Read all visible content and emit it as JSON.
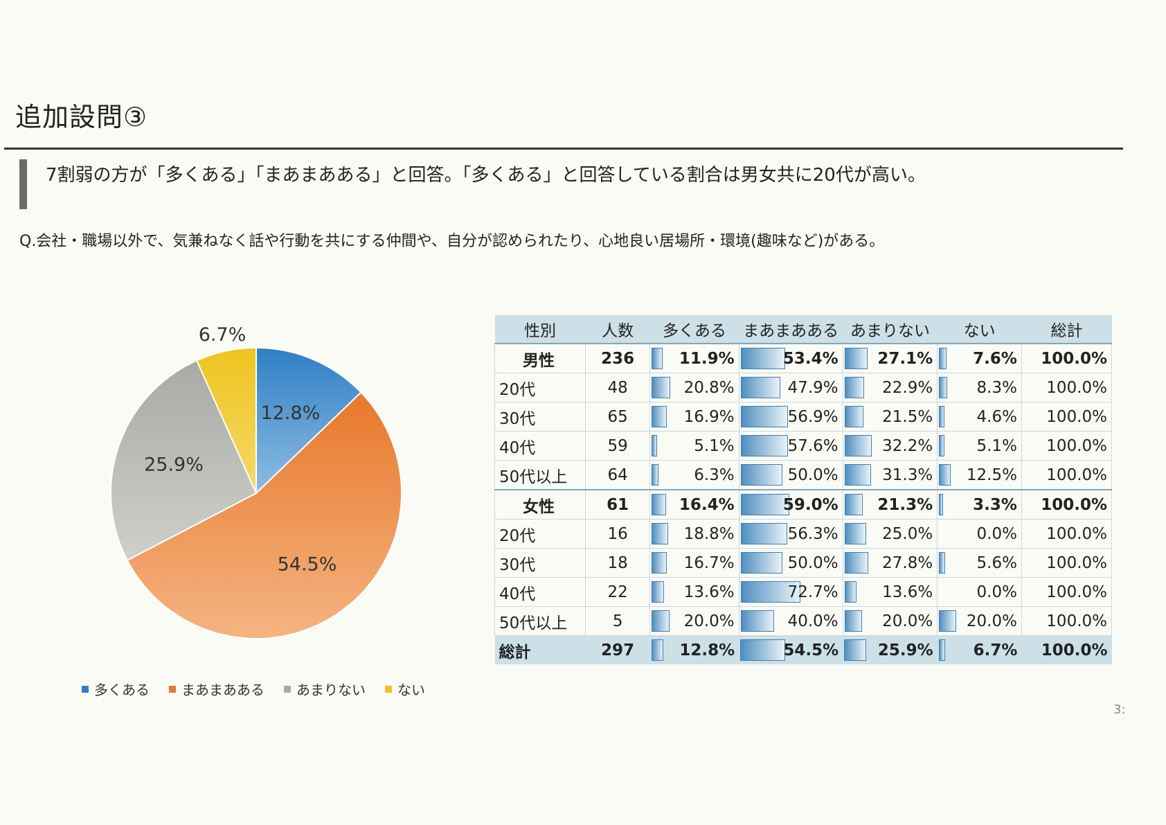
{
  "page": {
    "title": "追加設問③",
    "summary": "7割弱の方が「多くある」「まあまあある」と回答。「多くある」と回答している割合は男女共に20代が高い。",
    "question": "Q.会社・職場以外で、気兼ねなく話や行動を共にする仲間や、自分が認められたり、心地良い居場所・環境(趣味など)がある。",
    "page_number": "3:"
  },
  "chart_data": [
    {
      "type": "pie",
      "title": "",
      "categories": [
        "多くある",
        "まあまあある",
        "あまりない",
        "ない"
      ],
      "values": [
        12.8,
        54.5,
        25.9,
        6.7
      ],
      "labels": [
        "12.8%",
        "54.5%",
        "25.9%",
        "6.7%"
      ],
      "colors": [
        "#2f7fc4",
        "#e8782a",
        "#a8aaa5",
        "#eec41f"
      ],
      "legend": "bottom"
    },
    {
      "type": "table",
      "columns": [
        "性別",
        "人数",
        "多くある",
        "まあまあある",
        "あまりない",
        "ない",
        "総計"
      ],
      "rows": [
        {
          "label": "男性",
          "count": "236",
          "values": [
            11.9,
            53.4,
            27.1,
            7.6
          ],
          "total": "100.0%",
          "major": true
        },
        {
          "label": "20代",
          "count": "48",
          "values": [
            20.8,
            47.9,
            22.9,
            8.3
          ],
          "total": "100.0%"
        },
        {
          "label": "30代",
          "count": "65",
          "values": [
            16.9,
            56.9,
            21.5,
            4.6
          ],
          "total": "100.0%"
        },
        {
          "label": "40代",
          "count": "59",
          "values": [
            5.1,
            57.6,
            32.2,
            5.1
          ],
          "total": "100.0%"
        },
        {
          "label": "50代以上",
          "count": "64",
          "values": [
            6.3,
            50.0,
            31.3,
            12.5
          ],
          "total": "100.0%"
        },
        {
          "label": "女性",
          "count": "61",
          "values": [
            16.4,
            59.0,
            21.3,
            3.3
          ],
          "total": "100.0%",
          "major": true
        },
        {
          "label": "20代",
          "count": "16",
          "values": [
            18.8,
            56.3,
            25.0,
            0.0
          ],
          "total": "100.0%"
        },
        {
          "label": "30代",
          "count": "18",
          "values": [
            16.7,
            50.0,
            27.8,
            5.6
          ],
          "total": "100.0%"
        },
        {
          "label": "40代",
          "count": "22",
          "values": [
            13.6,
            72.7,
            13.6,
            0.0
          ],
          "total": "100.0%"
        },
        {
          "label": "50代以上",
          "count": "5",
          "values": [
            20.0,
            40.0,
            20.0,
            20.0
          ],
          "total": "100.0%"
        },
        {
          "label": "総計",
          "count": "297",
          "values": [
            12.8,
            54.5,
            25.9,
            6.7
          ],
          "total": "100.0%",
          "is_total": true
        }
      ]
    }
  ]
}
